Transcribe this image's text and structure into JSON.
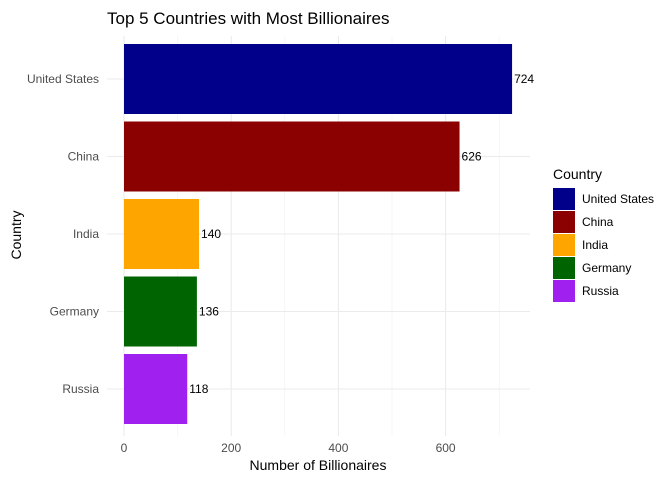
{
  "chart_data": {
    "type": "bar",
    "orientation": "horizontal",
    "title": "Top 5 Countries with Most Billionaires",
    "xlabel": "Number of Billionaires",
    "ylabel": "Country",
    "categories": [
      "United States",
      "China",
      "India",
      "Germany",
      "Russia"
    ],
    "values": [
      724,
      626,
      140,
      136,
      118
    ],
    "colors": [
      "#00008B",
      "#8B0000",
      "#FFA500",
      "#006400",
      "#A020F0"
    ],
    "xlim": [
      0,
      760
    ],
    "xticks": [
      0,
      200,
      400,
      600
    ],
    "grid": true,
    "legend": {
      "title": "Country",
      "position": "right",
      "entries": [
        "United States",
        "China",
        "India",
        "Germany",
        "Russia"
      ]
    }
  }
}
